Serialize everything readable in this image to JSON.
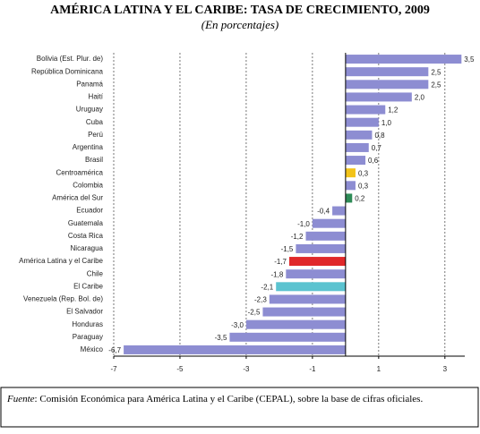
{
  "chart_data": {
    "type": "bar",
    "orientation": "horizontal",
    "title": "AMÉRICA LATINA Y EL CARIBE: TASA DE CRECIMIENTO, 2009",
    "subtitle": "(En porcentajes)",
    "categories": [
      "Bolivia (Est. Plur. de)",
      "República Dominicana",
      "Panamá",
      "Haití",
      "Uruguay",
      "Cuba",
      "Perú",
      "Argentina",
      "Brasil",
      "Centroamérica",
      "Colombia",
      "América del Sur",
      "Ecuador",
      "Guatemala",
      "Costa Rica",
      "Nicaragua",
      "América Latina y el Caribe",
      "Chile",
      "El Caribe",
      "Venezuela (Rep. Bol. de)",
      "El Salvador",
      "Honduras",
      "Paraguay",
      "México"
    ],
    "values": [
      3.5,
      2.5,
      2.5,
      2.0,
      1.2,
      1.0,
      0.8,
      0.7,
      0.6,
      0.3,
      0.3,
      0.2,
      -0.4,
      -1.0,
      -1.2,
      -1.5,
      -1.7,
      -1.8,
      -2.1,
      -2.3,
      -2.5,
      -3.0,
      -3.5,
      -6.7
    ],
    "value_labels": [
      "3,5",
      "2,5",
      "2,5",
      "2,0",
      "1,2",
      "1,0",
      "0,8",
      "0,7",
      "0,6",
      "0,3",
      "0,3",
      "0,2",
      "-0,4",
      "-1,0",
      "-1,2",
      "-1,5",
      "-1,7",
      "-1,8",
      "-2,1",
      "-2,3",
      "-2,5",
      "-3,0",
      "-3,5",
      "-6,7"
    ],
    "colors": [
      "#8d8dd2",
      "#8d8dd2",
      "#8d8dd2",
      "#8d8dd2",
      "#8d8dd2",
      "#8d8dd2",
      "#8d8dd2",
      "#8d8dd2",
      "#8d8dd2",
      "#f2c319",
      "#8d8dd2",
      "#2e8b57",
      "#8d8dd2",
      "#8d8dd2",
      "#8d8dd2",
      "#8d8dd2",
      "#e0282a",
      "#8d8dd2",
      "#5bc3d0",
      "#8d8dd2",
      "#8d8dd2",
      "#8d8dd2",
      "#8d8dd2",
      "#8d8dd2"
    ],
    "xlim": [
      -7,
      3.6
    ],
    "xticks": [
      -7,
      -5,
      -3,
      -1,
      1,
      3
    ],
    "grid": true,
    "note_label": "Fuente",
    "note": ": Comisión Económica para América Latina y el Caribe (CEPAL), sobre la base de cifras oficiales."
  }
}
